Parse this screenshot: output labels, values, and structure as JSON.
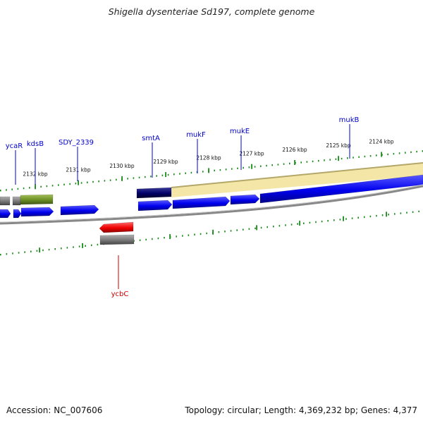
{
  "title": "Shigella dysenteriae Sd197, complete genome",
  "footer": {
    "accession": "Accession: NC_007606",
    "summary": "Topology: circular; Length: 4,369,232 bp; Genes: 4,377"
  },
  "colors": {
    "forward_cds": "#0000ee",
    "reverse_cds": "#ee0000",
    "gene_gray": "#777777",
    "olive": "#6b8e23",
    "highlight": "#f3e6a6",
    "navy": "#000066",
    "tick": "#1a8a1a",
    "forward_label": "#0000cc",
    "reverse_label": "#cc0000",
    "backbone": "#888888"
  },
  "kbp_ticks": [
    {
      "label": "2132 kbp"
    },
    {
      "label": "2131 kbp"
    },
    {
      "label": "2130 kbp"
    },
    {
      "label": "2129 kbp"
    },
    {
      "label": "2128 kbp"
    },
    {
      "label": "2127 kbp"
    },
    {
      "label": "2126 kbp"
    },
    {
      "label": "2125 kbp"
    },
    {
      "label": "2124 kbp"
    }
  ],
  "gene_labels": [
    {
      "name": "ycaR",
      "strand": "forward"
    },
    {
      "name": "kdsB",
      "strand": "forward"
    },
    {
      "name": "SDY_2339",
      "strand": "forward"
    },
    {
      "name": "smtA",
      "strand": "forward"
    },
    {
      "name": "mukF",
      "strand": "forward"
    },
    {
      "name": "mukE",
      "strand": "forward"
    },
    {
      "name": "mukB",
      "strand": "forward"
    },
    {
      "name": "ycbC",
      "strand": "reverse"
    }
  ]
}
